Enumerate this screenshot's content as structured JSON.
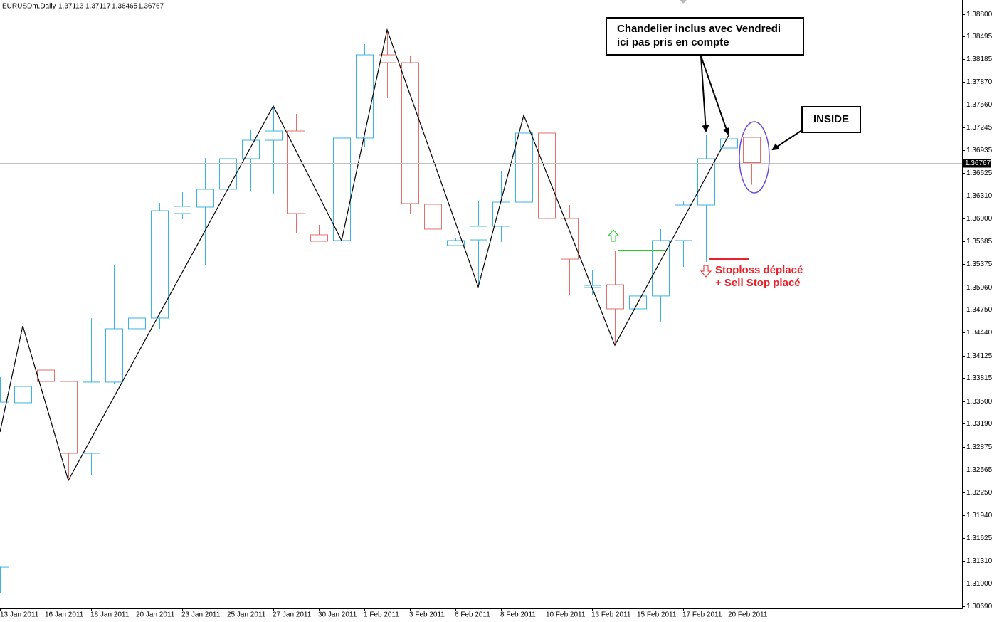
{
  "chart_data": {
    "type": "candlestick",
    "symbol": "EURUSDm,Daily",
    "categories": [
      "13 Jan 2011",
      null,
      "16 Jan 2011",
      null,
      "18 Jan 2011",
      null,
      "20 Jan 2011",
      null,
      "23 Jan 2011",
      null,
      "25 Jan 2011",
      null,
      "27 Jan 2011",
      null,
      "30 Jan 2011",
      null,
      "1 Feb 2011",
      null,
      "3 Feb 2011",
      null,
      "6 Feb 2011",
      null,
      "8 Feb 2011",
      null,
      "10 Feb 2011",
      null,
      "13 Feb 2011",
      null,
      "15 Feb 2011",
      null,
      "17 Feb 2011",
      null,
      "20 Feb 2011",
      null
    ],
    "open": [
      1.31224,
      1.33477,
      1.33925,
      1.33769,
      1.32784,
      1.3376,
      1.34491,
      1.34637,
      1.3607,
      1.36158,
      1.36402,
      1.36821,
      1.37074,
      1.37201,
      1.35778,
      1.357,
      1.37104,
      1.38244,
      1.38137,
      1.36197,
      1.35631,
      1.35709,
      1.35895,
      1.36226,
      1.37172,
      1.36002,
      1.35056,
      1.35095,
      1.34764,
      1.3494,
      1.357,
      1.36187,
      1.36967,
      1.37113
    ],
    "high": [
      1.33828,
      1.3453,
      1.33974,
      1.33769,
      1.34637,
      1.35358,
      1.35193,
      1.36216,
      1.36363,
      1.36831,
      1.37045,
      1.37211,
      1.37542,
      1.37435,
      1.35914,
      1.37367,
      1.38391,
      1.38586,
      1.38225,
      1.3645,
      1.35739,
      1.36236,
      1.36655,
      1.37416,
      1.3726,
      1.36187,
      1.3529,
      1.35563,
      1.35485,
      1.35856,
      1.36236,
      1.37143,
      1.3724,
      1.37117
    ],
    "low": [
      1.30873,
      1.33126,
      1.33652,
      1.32443,
      1.32492,
      1.3373,
      1.33925,
      1.34491,
      1.35992,
      1.35368,
      1.357,
      1.36382,
      1.36343,
      1.35807,
      1.3569,
      1.357,
      1.36977,
      1.3765,
      1.3607,
      1.35407,
      1.35631,
      1.35066,
      1.3568,
      1.3609,
      1.35748,
      1.34949,
      1.34949,
      1.34266,
      1.34588,
      1.34588,
      1.35339,
      1.35407,
      1.36831,
      1.36465
    ],
    "close": [
      1.33486,
      1.33701,
      1.33769,
      1.32784,
      1.3376,
      1.34491,
      1.34637,
      1.36109,
      1.36168,
      1.36402,
      1.36821,
      1.37074,
      1.37201,
      1.3607,
      1.3569,
      1.37104,
      1.38244,
      1.38137,
      1.36207,
      1.35856,
      1.357,
      1.35895,
      1.36226,
      1.37172,
      1.36002,
      1.35446,
      1.35085,
      1.34764,
      1.3494,
      1.357,
      1.36187,
      1.36821,
      1.37094,
      1.36767
    ],
    "up_color": "#3cb4e0",
    "down_color": "#e0706a",
    "ylim": [
      1.30659,
      1.38995
    ],
    "yticks": [
      {
        "value": 1.388,
        "label": "1.38800"
      },
      1.38495,
      1.38185,
      {
        "value": 1.3787,
        "label": "1.37870"
      },
      {
        "value": 1.3756,
        "label": "1.37560"
      },
      1.37245,
      1.36935,
      1.36625,
      {
        "value": 1.3631,
        "label": "1.36310"
      },
      {
        "value": 1.36,
        "label": "1.36000"
      },
      1.35685,
      1.35375,
      {
        "value": 1.3506,
        "label": "1.35060"
      },
      {
        "value": 1.3475,
        "label": "1.34750"
      },
      {
        "value": 1.3444,
        "label": "1.34440"
      },
      1.34125,
      1.33815,
      {
        "value": 1.335,
        "label": "1.33500"
      },
      {
        "value": 1.3319,
        "label": "1.33190"
      },
      1.32875,
      1.32565,
      {
        "value": 1.3225,
        "label": "1.32250"
      },
      {
        "value": 1.3194,
        "label": "1.31940"
      },
      1.31625,
      {
        "value": 1.3131,
        "label": "1.31310"
      },
      {
        "value": 1.31,
        "label": "1.31000"
      },
      {
        "value": 1.3069,
        "label": "1.30690"
      }
    ],
    "zigzag": {
      "color": "#000000",
      "points": [
        {
          "bar": 0,
          "value": 1.33077
        },
        {
          "bar": 1,
          "value": 1.3453
        },
        {
          "bar": 3,
          "value": 1.32414
        },
        {
          "bar": 12,
          "value": 1.37542
        },
        {
          "bar": 15,
          "value": 1.357
        },
        {
          "bar": 17,
          "value": 1.38586
        },
        {
          "bar": 21,
          "value": 1.35066
        },
        {
          "bar": 23,
          "value": 1.37416
        },
        {
          "bar": 27,
          "value": 1.34266
        },
        {
          "bar": 32,
          "value": 1.37143
        }
      ]
    },
    "levels": [
      {
        "value": 1.35563,
        "color": "#22cc22"
      },
      {
        "value": 1.35446,
        "color": "#e8222a"
      }
    ],
    "notes": {
      "callout": [
        "Chandelier inclus avec Vendredi",
        "ici pas pris en compte"
      ],
      "inside": "INSIDE",
      "stoploss": [
        "Stoploss déplacé",
        "+ Sell Stop placé"
      ]
    }
  }
}
